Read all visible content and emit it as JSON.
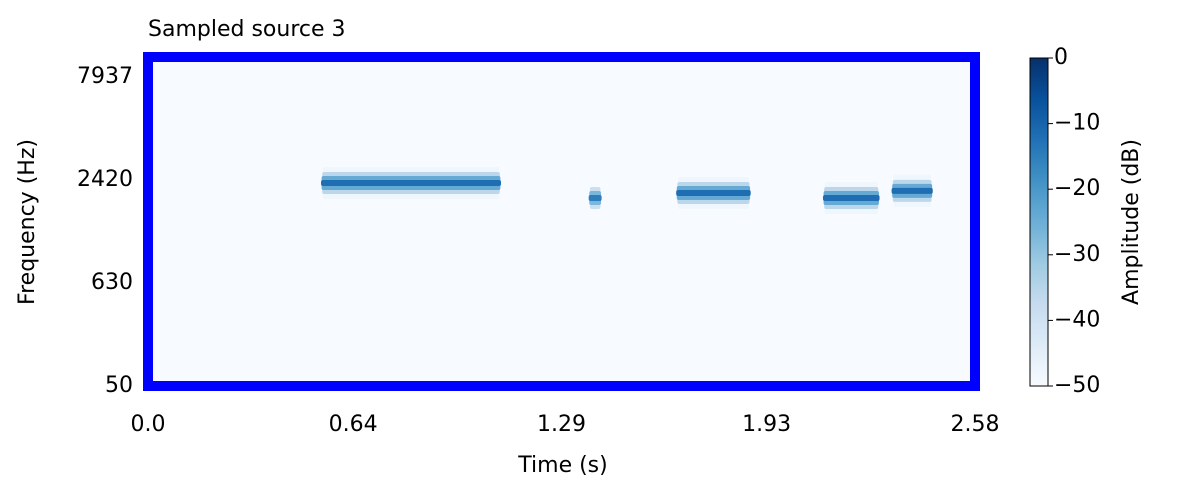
{
  "chart_data": {
    "type": "spectrogram",
    "title": "Sampled source 3",
    "xlabel": "Time (s)",
    "ylabel": "Frequency (Hz)",
    "xlim": [
      0,
      2.58
    ],
    "xticks": [
      {
        "value": 0,
        "label": "0.0"
      },
      0.64,
      1.29,
      1.93,
      2.58
    ],
    "ylim": [
      50,
      10000
    ],
    "yticks": [
      50,
      630,
      2420,
      7937
    ],
    "events": [
      {
        "start": 0.546,
        "end": 1.095,
        "freq": 2327,
        "db": -12
      },
      {
        "start": 1.381,
        "end": 1.409,
        "freq": 1913,
        "db": -15
      },
      {
        "start": 1.654,
        "end": 1.874,
        "freq": 2041,
        "db": -12
      },
      {
        "start": 2.112,
        "end": 2.276,
        "freq": 1913,
        "db": -12
      },
      {
        "start": 2.326,
        "end": 2.442,
        "freq": 2099,
        "db": -12
      }
    ],
    "colorbar": {
      "label": "Amplitude (dB)",
      "zlim": [
        -50,
        0
      ],
      "ticks": [
        {
          "value": 0,
          "label": "0"
        },
        {
          "value": -10,
          "label": "−10"
        },
        {
          "value": -20,
          "label": "−20"
        },
        {
          "value": -30,
          "label": "−30"
        },
        {
          "value": -40,
          "label": "−40"
        },
        {
          "value": -50,
          "label": "−50"
        }
      ]
    },
    "colormap": [
      "#f7fbff",
      "#deebf7",
      "#c6dbef",
      "#9ecae1",
      "#6baed6",
      "#4292c6",
      "#2171b5",
      "#08519c",
      "#08306b"
    ],
    "frame_color": "#0000ff"
  }
}
